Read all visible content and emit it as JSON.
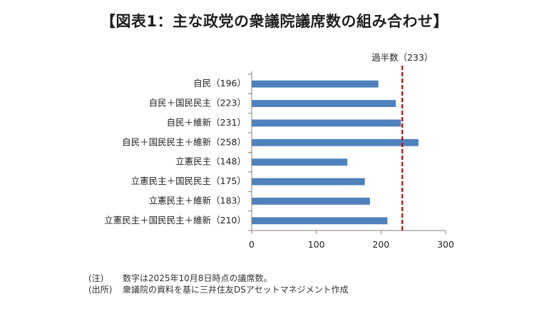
{
  "title": "【図表1：主な政党の衆議院議席数の組み合わせ】",
  "chart_data": {
    "type": "bar",
    "orientation": "horizontal",
    "categories": [
      "自民（196）",
      "自民＋国民民主（223）",
      "自民＋維新（231）",
      "自民＋国民民主＋維新（258）",
      "立憲民主（148）",
      "立憲民主＋国民民主（175）",
      "立憲民主＋維新（183）",
      "立憲民主＋国民民主＋維新（210）"
    ],
    "values": [
      196,
      223,
      231,
      258,
      148,
      175,
      183,
      210
    ],
    "xlim": [
      0,
      300
    ],
    "xticks": [
      0,
      100,
      200,
      300
    ],
    "xtick_labels": [
      "0",
      "100",
      "200",
      "300"
    ],
    "reference_line": {
      "value": 233,
      "label": "過半数（233）",
      "color": "#c00000",
      "style": "dashed"
    },
    "bar_color": "#4f81bd",
    "grid": false,
    "legend": "none"
  },
  "notes": [
    {
      "tag": "(注)",
      "text": "数字は2025年10月8日時点の議席数。"
    },
    {
      "tag": "(出所)",
      "text": "衆議院の資料を基に三井住友DSアセットマネジメント作成"
    }
  ]
}
